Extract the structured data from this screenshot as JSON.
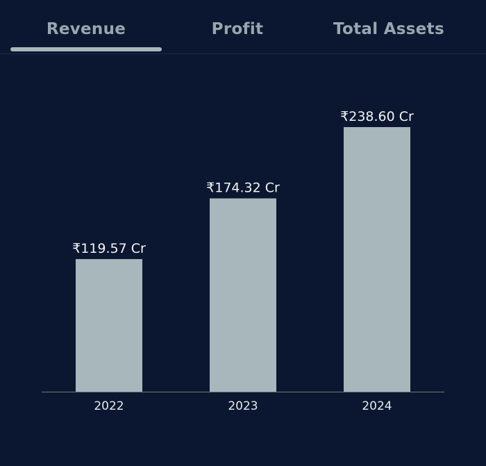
{
  "tabs": [
    {
      "label": "Revenue",
      "active": true
    },
    {
      "label": "Profit",
      "active": false
    },
    {
      "label": "Total Assets",
      "active": false
    }
  ],
  "colors": {
    "background": "#0b1730",
    "bar": "#a7b7bb",
    "indicator": "#a7b7bb",
    "value_text": "#f2f4f5",
    "tick_text": "#e6eaec",
    "axis": "#6b7683"
  },
  "chart_data": {
    "type": "bar",
    "categories": [
      "2022",
      "2023",
      "2024"
    ],
    "values": [
      119.57,
      174.32,
      238.6
    ],
    "value_labels": [
      "₹119.57 Cr",
      "₹174.32 Cr",
      "₹238.60 Cr"
    ],
    "ylim": [
      0,
      238.6
    ],
    "grid": false,
    "legend": "none"
  }
}
